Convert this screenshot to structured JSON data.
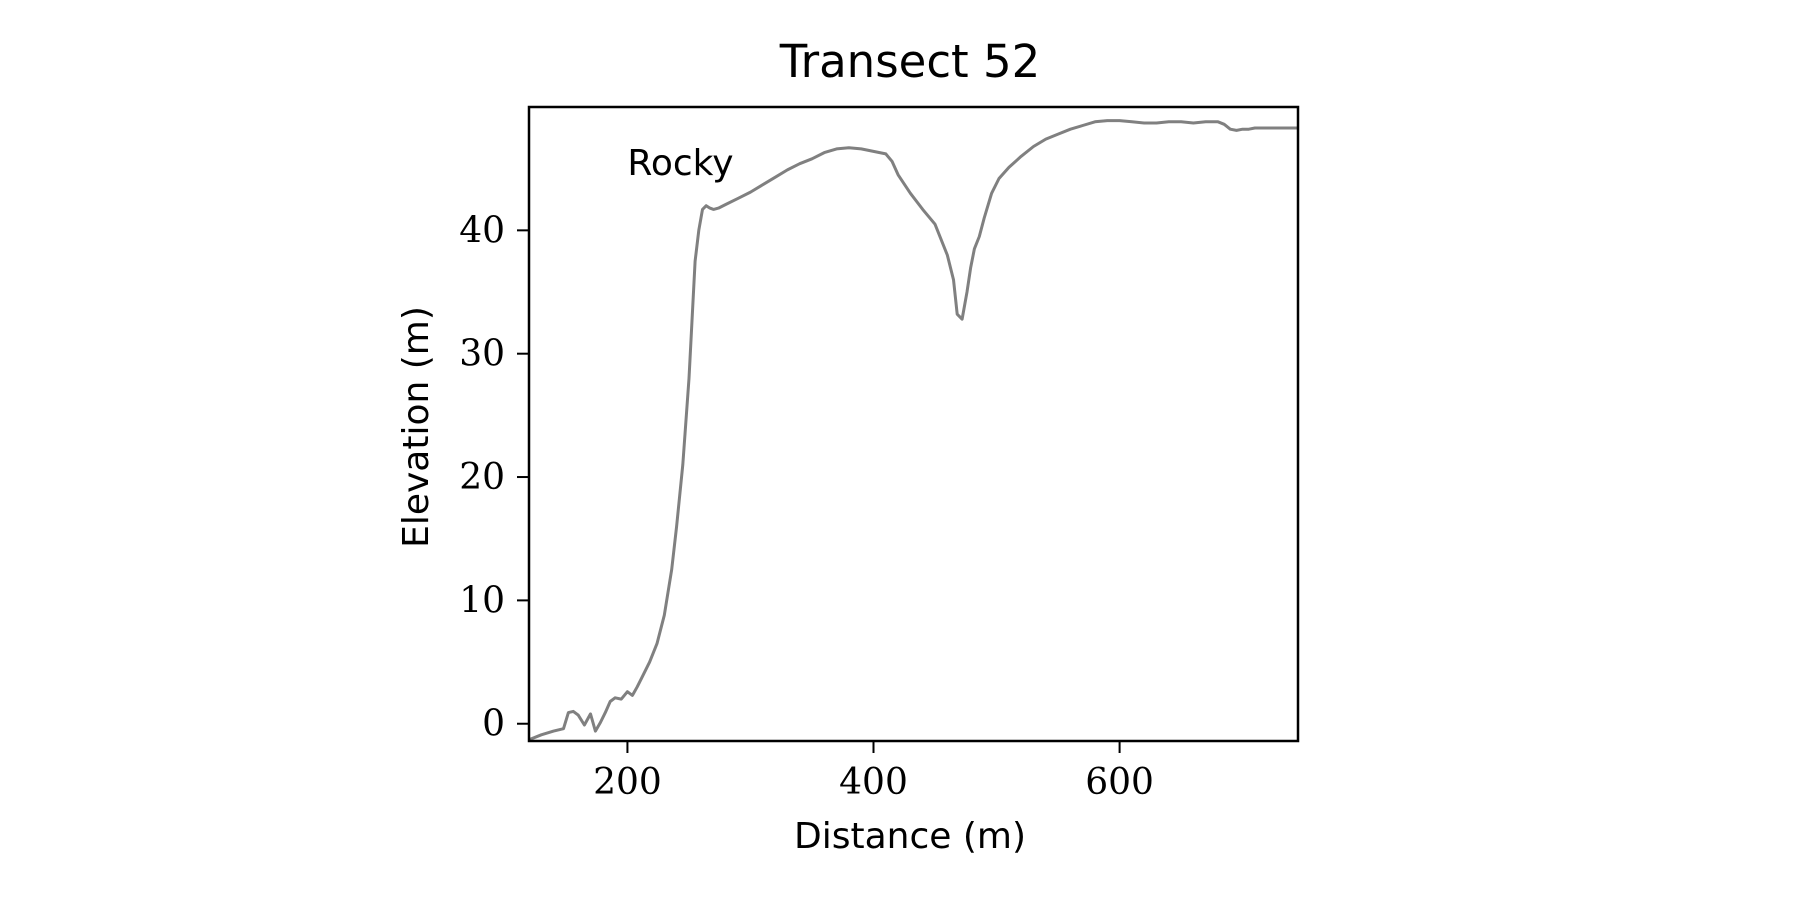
{
  "chart_data": {
    "type": "line",
    "title": "Transect 52",
    "xlabel": "Distance (m)",
    "ylabel": "Elevation (m)",
    "xlim": [
      120,
      745
    ],
    "ylim": [
      -1.4,
      50
    ],
    "xticks": [
      200,
      400,
      600
    ],
    "yticks": [
      0,
      10,
      20,
      30,
      40
    ],
    "grid": false,
    "line_color": "#808080",
    "annotations": [
      {
        "text": "Rocky",
        "x": 200,
        "y": 44.5
      }
    ],
    "series": [
      {
        "x": [
          120,
          130,
          140,
          148,
          152,
          156,
          160,
          165,
          170,
          174,
          178,
          182,
          186,
          190,
          195,
          200,
          204,
          208,
          212,
          218,
          224,
          230,
          236,
          240,
          245,
          250,
          255,
          258,
          261,
          264,
          267,
          270,
          274,
          280,
          290,
          300,
          310,
          320,
          330,
          340,
          350,
          360,
          370,
          380,
          390,
          400,
          410,
          415,
          420,
          430,
          440,
          450,
          460,
          465,
          468,
          472,
          476,
          479,
          482,
          486,
          490,
          496,
          502,
          510,
          520,
          530,
          540,
          550,
          560,
          570,
          580,
          590,
          600,
          610,
          620,
          630,
          640,
          650,
          660,
          670,
          680,
          685,
          690,
          695,
          700,
          705,
          710,
          720,
          730,
          745
        ],
        "y": [
          -1.3,
          -0.9,
          -0.6,
          -0.4,
          0.9,
          1.0,
          0.7,
          -0.1,
          0.8,
          -0.6,
          0.1,
          0.9,
          1.8,
          2.1,
          2.0,
          2.6,
          2.3,
          3.0,
          3.8,
          5.0,
          6.5,
          8.8,
          12.5,
          16.0,
          21.0,
          28.0,
          37.5,
          40.0,
          41.7,
          42.0,
          41.8,
          41.7,
          41.8,
          42.1,
          42.6,
          43.1,
          43.7,
          44.3,
          44.9,
          45.4,
          45.8,
          46.3,
          46.6,
          46.7,
          46.6,
          46.4,
          46.2,
          45.6,
          44.5,
          43.0,
          41.7,
          40.5,
          38.0,
          36.0,
          33.2,
          32.8,
          35.0,
          37.0,
          38.5,
          39.5,
          41.0,
          43.0,
          44.2,
          45.1,
          46.0,
          46.8,
          47.4,
          47.8,
          48.2,
          48.5,
          48.8,
          48.9,
          48.9,
          48.8,
          48.7,
          48.7,
          48.8,
          48.8,
          48.7,
          48.8,
          48.8,
          48.6,
          48.2,
          48.1,
          48.2,
          48.2,
          48.3,
          48.3,
          48.3,
          48.3
        ]
      }
    ]
  }
}
